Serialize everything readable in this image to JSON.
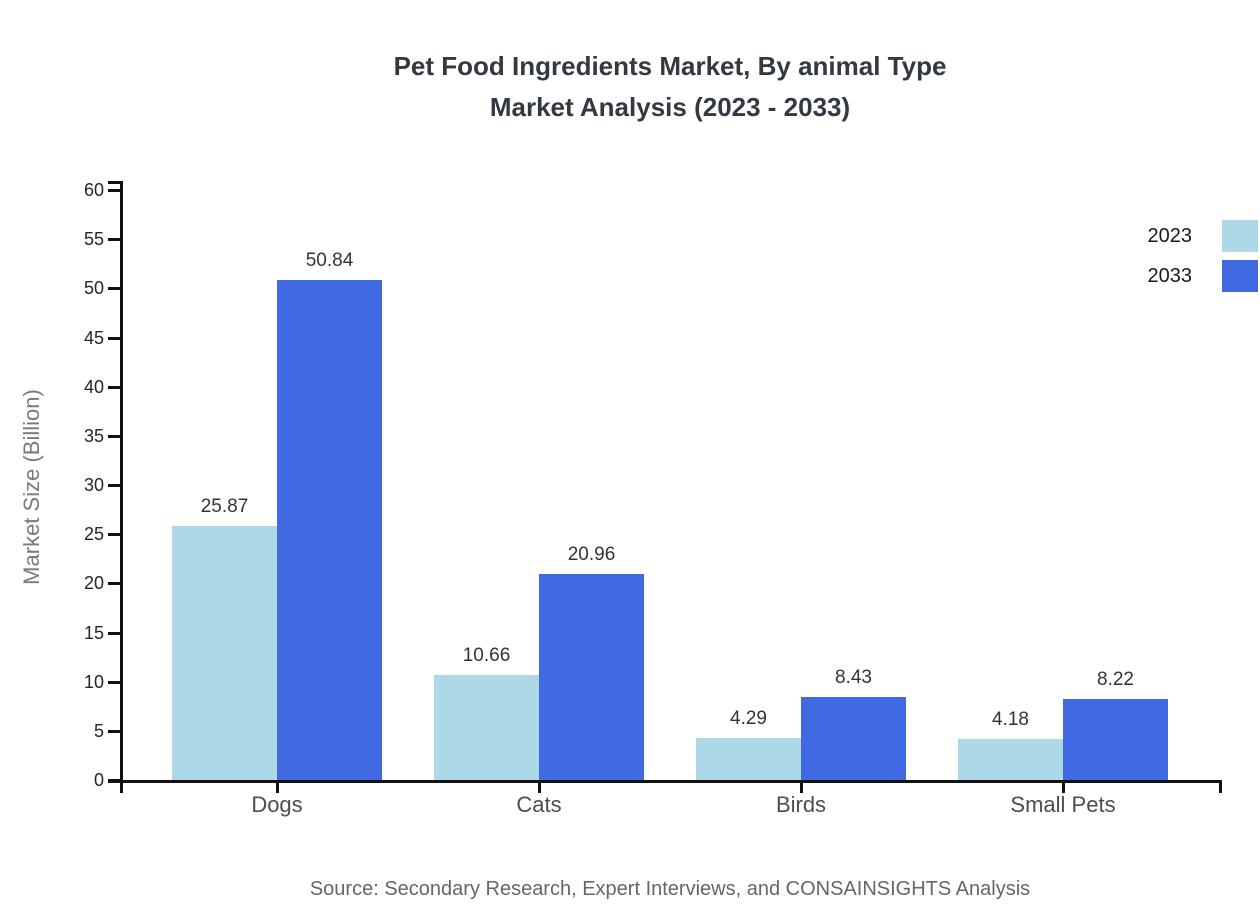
{
  "title": {
    "line1": "Pet Food Ingredients Market, By animal Type",
    "line2": "Market Analysis (2023 - 2033)"
  },
  "source": "Source: Secondary Research, Expert Interviews, and CONSAINSIGHTS Analysis",
  "chart_data": {
    "type": "bar",
    "categories": [
      "Dogs",
      "Cats",
      "Birds",
      "Small Pets"
    ],
    "series": [
      {
        "name": "2023",
        "color": "#ADD8E6",
        "values": [
          25.87,
          10.66,
          4.29,
          4.18
        ]
      },
      {
        "name": "2033",
        "color": "#4169E1",
        "values": [
          50.84,
          20.96,
          8.43,
          8.22
        ]
      }
    ],
    "title": "Pet Food Ingredients Market, By animal Type Market Analysis (2023 - 2033)",
    "xlabel": "",
    "ylabel": "Market Size (Billion)",
    "ylim": [
      0,
      60
    ],
    "ytick_step": 5,
    "yticks": [
      0,
      5,
      10,
      15,
      20,
      25,
      30,
      35,
      40,
      45,
      50,
      55,
      60
    ],
    "grid": false,
    "legend_position": "top-right",
    "data_labels": true,
    "axis_color": "#111111"
  }
}
